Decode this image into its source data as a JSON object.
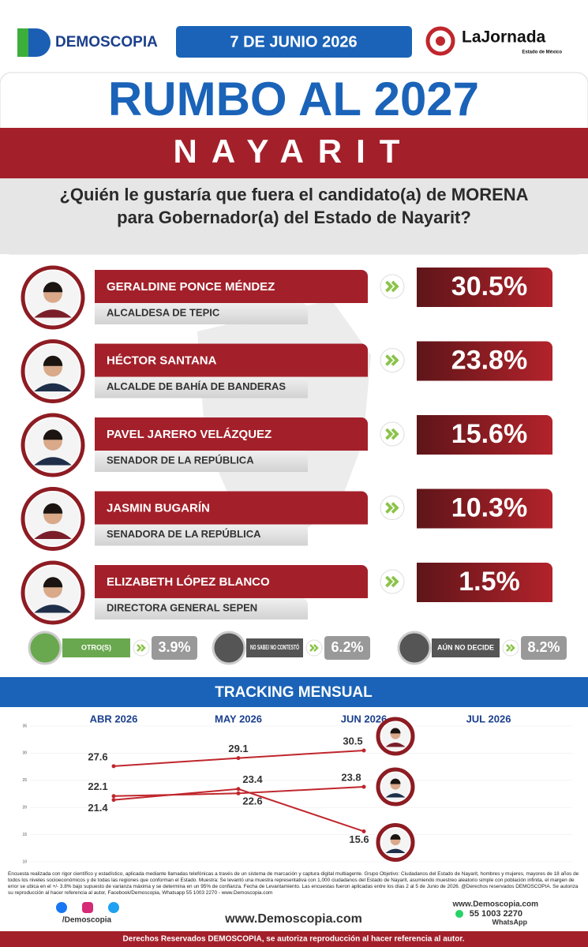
{
  "header": {
    "brand": "DEMOSCOPIA",
    "date": "7 DE JUNIO 2026",
    "paper": "LaJornada",
    "paper_sub": "Estado de México",
    "title": "RUMBO AL 2027",
    "state": "NAYARIT",
    "question": "¿Quién le gustaría que fuera el candidato(a) de MORENA para Gobernador(a) del Estado de Nayarit?"
  },
  "candidates": [
    {
      "name": "GERALDINE PONCE MÉNDEZ",
      "role": "ALCALDESA DE TEPIC",
      "value": "30.5%"
    },
    {
      "name": "HÉCTOR SANTANA",
      "role": "ALCALDE DE BAHÍA DE BANDERAS",
      "value": "23.8%"
    },
    {
      "name": "PAVEL JARERO VELÁZQUEZ",
      "role": "SENADOR DE LA REPÚBLICA",
      "value": "15.6%"
    },
    {
      "name": "JASMIN BUGARÍN",
      "role": "SENADORA DE LA REPÚBLICA",
      "value": "10.3%"
    },
    {
      "name": "ELIZABETH LÓPEZ BLANCO",
      "role": "DIRECTORA GENERAL SEPEN",
      "value": "1.5%"
    }
  ],
  "others": [
    {
      "label": "OTRO(S)",
      "value": "3.9%"
    },
    {
      "label": "NO SABE/ NO CONTESTÓ",
      "value": "6.2%"
    },
    {
      "label": "AÚN NO DECIDE",
      "value": "8.2%"
    }
  ],
  "chart_data": {
    "type": "line",
    "title": "TRACKING MENSUAL",
    "categories": [
      "ABR 2026",
      "MAY 2026",
      "JUN 2026",
      "JUL 2026"
    ],
    "series": [
      {
        "name": "GERALDINE PONCE MÉNDEZ",
        "color": "#c0262d",
        "values": [
          27.6,
          29.1,
          30.5,
          null
        ]
      },
      {
        "name": "HÉCTOR SANTANA",
        "color": "#c0262d",
        "values": [
          22.1,
          22.6,
          23.8,
          null
        ]
      },
      {
        "name": "PAVEL JARERO VELÁZQUEZ",
        "color": "#c0262d",
        "values": [
          21.4,
          23.4,
          15.6,
          null
        ]
      }
    ],
    "ylim": [
      10,
      35
    ],
    "yticks": [
      10,
      15,
      20,
      25,
      30,
      35
    ],
    "grid": true
  },
  "footer": {
    "disclaimer": "Encuesta realizada con rigor científico y estadístico, aplicada mediante llamadas telefónicas a través de un sistema de marcación y captura digital multiagente. Grupo Objetivo: Ciudadanos del Estado de Nayarit, hombres y mujeres, mayores de 18 años de todos los niveles socioeconómicos y de todas las regiones que conforman el Estado. Muestra: Se levantó una muestra representativa con 1,000 ciudadanos del Estado de Nayarit, asumiendo muestreo aleatorio simple con población infinita, el margen de error se ubica en el +/- 3.8% bajo supuesto de varianza máxima y se determina en un 95% de confianza. Fecha de Levantamiento. Las encuestas fueron aplicadas entre los días 2 al 5 de Junio de 2026. @Derechos reservados DEMOSCOPIA. Se autoriza su reproducción al hacer referencia al autor, Facebook/Demoscopia, Whatsapp 55 1003 2270 - www.Demoscopia.com",
    "social": "/Demoscopia",
    "website": "www.Demoscopia.com",
    "contact_site": "www.Demoscopia.com",
    "phone": "55 1003 2270",
    "whatsapp": "WhatsApp",
    "rights": "Derechos Reservados DEMOSCOPIA, se autoriza reproducción al hacer referencia al autor."
  }
}
